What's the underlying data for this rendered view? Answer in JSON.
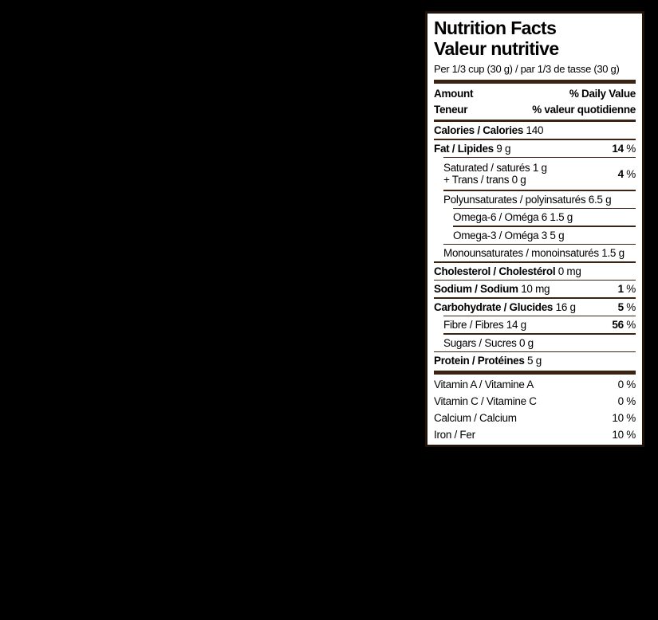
{
  "label": {
    "title_en": "Nutrition Facts",
    "title_fr": "Valeur nutritive",
    "serving": "Per 1/3 cup (30 g) / par 1/3 de tasse (30 g)",
    "header": {
      "amount_en": "Amount",
      "amount_fr": "Teneur",
      "dv_en": "% Daily Value",
      "dv_fr": "% valeur quotidienne"
    },
    "colors": {
      "page_background": "#000000",
      "label_background": "#ffffff",
      "border": "#21120a",
      "rule": "#3b2314",
      "text": "#000000"
    },
    "rows": [
      {
        "name": "calories",
        "indent": 0,
        "parts": [
          {
            "text": "Calories / Calories",
            "bold": true
          },
          {
            "text": " 140",
            "bold": false
          }
        ],
        "value": null,
        "sep_below": "full"
      },
      {
        "name": "fat",
        "indent": 0,
        "parts": [
          {
            "text": "Fat / Lipides",
            "bold": true
          },
          {
            "text": " 9 g",
            "bold": false
          }
        ],
        "value": {
          "num": "14",
          "unit": " %",
          "bold": true
        },
        "sep_below": "indent1"
      },
      {
        "name": "saturated-trans",
        "indent": 1,
        "lines": [
          "Saturated / saturés 1 g",
          "+ Trans / trans 0 g"
        ],
        "value": {
          "num": "4",
          "unit": " %",
          "bold": true
        },
        "sep_below": "indent1"
      },
      {
        "name": "polyunsaturates",
        "indent": 1,
        "parts": [
          {
            "text": "Polyunsaturates / polyinsaturés 6.5 g",
            "bold": false
          }
        ],
        "value": null,
        "sep_below": "indent2"
      },
      {
        "name": "omega-6",
        "indent": 2,
        "parts": [
          {
            "text": "Omega-6 / Oméga 6  1.5 g",
            "bold": false
          }
        ],
        "value": null,
        "sep_below": "indent2"
      },
      {
        "name": "omega-3",
        "indent": 2,
        "parts": [
          {
            "text": "Omega-3 / Oméga 3  5 g",
            "bold": false
          }
        ],
        "value": null,
        "sep_below": "indent1"
      },
      {
        "name": "monounsaturates",
        "indent": 1,
        "parts": [
          {
            "text": "Monounsaturates / monoinsaturés 1.5 g",
            "bold": false
          }
        ],
        "value": null,
        "sep_below": "full"
      },
      {
        "name": "cholesterol",
        "indent": 0,
        "parts": [
          {
            "text": "Cholesterol / Cholestérol",
            "bold": true
          },
          {
            "text": " 0 mg",
            "bold": false
          }
        ],
        "value": null,
        "sep_below": "full"
      },
      {
        "name": "sodium",
        "indent": 0,
        "parts": [
          {
            "text": "Sodium / Sodium",
            "bold": true
          },
          {
            "text": " 10 mg",
            "bold": false
          }
        ],
        "value": {
          "num": "1",
          "unit": " %",
          "bold": true
        },
        "sep_below": "full"
      },
      {
        "name": "carbohydrate",
        "indent": 0,
        "parts": [
          {
            "text": "Carbohydrate / Glucides",
            "bold": true
          },
          {
            "text": " 16 g",
            "bold": false
          }
        ],
        "value": {
          "num": "5",
          "unit": " %",
          "bold": true
        },
        "sep_below": "indent1"
      },
      {
        "name": "fibre",
        "indent": 1,
        "parts": [
          {
            "text": "Fibre / Fibres 14 g",
            "bold": false
          }
        ],
        "value": {
          "num": "56",
          "unit": " %",
          "bold": true
        },
        "sep_below": "indent1"
      },
      {
        "name": "sugars",
        "indent": 1,
        "parts": [
          {
            "text": "Sugars / Sucres 0 g",
            "bold": false
          }
        ],
        "value": null,
        "sep_below": "full"
      },
      {
        "name": "protein",
        "indent": 0,
        "parts": [
          {
            "text": "Protein / Protéines",
            "bold": true
          },
          {
            "text": " 5 g",
            "bold": false
          }
        ],
        "value": null,
        "sep_below": "none"
      }
    ],
    "micronutrients": [
      {
        "name": "vitamin-a",
        "label": "Vitamin A / Vitamine A",
        "value": "0 %"
      },
      {
        "name": "vitamin-c",
        "label": "Vitamin C / Vitamine C",
        "value": "0 %"
      },
      {
        "name": "calcium",
        "label": "Calcium / Calcium",
        "value": "10 %"
      },
      {
        "name": "iron",
        "label": "Iron / Fer",
        "value": "10 %"
      }
    ]
  }
}
